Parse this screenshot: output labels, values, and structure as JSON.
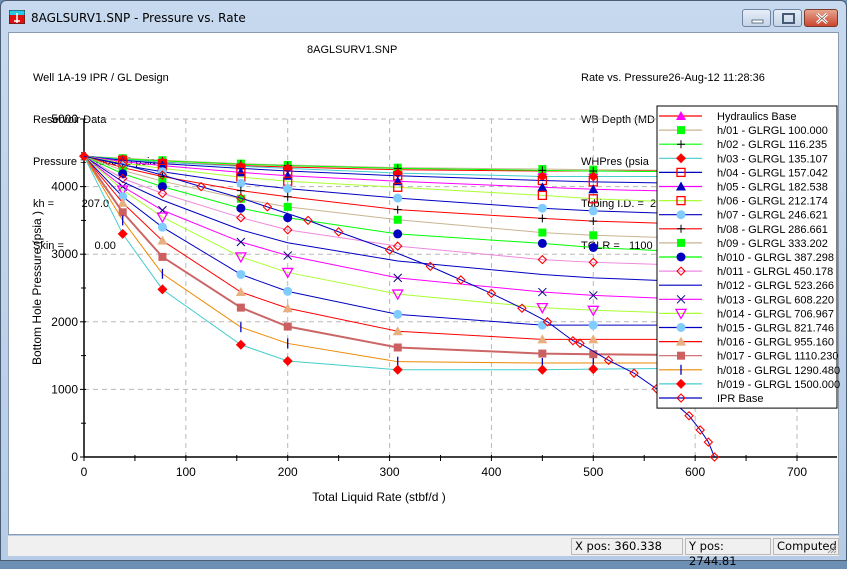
{
  "window": {
    "title": "8AGLSURV1.SNP - Pressure vs. Rate",
    "buttons": [
      "minimize",
      "maximize",
      "close"
    ]
  },
  "header": {
    "left": [
      "Well 1A-19 IPR / GL Design",
      "Reservoir Data",
      "Pressure =  4500.00 psia",
      "kh =         207.0",
      "Skin =          0.00"
    ],
    "center": "8AGLSURV1.SNP",
    "right": [
      "Rate vs. Pressure26-Aug-12 11:28:36",
      "WB Depth (MD ft)= 11000",
      "WHPres (psia   ) =  125.00",
      "Tubing I.D. =  2.441 (s1)",
      "TGLR =   1100"
    ]
  },
  "status": {
    "x_pos": "X pos: 360.338",
    "y_pos": "Y pos: 2744.81",
    "state": "Computed"
  },
  "chart_data": {
    "type": "line",
    "title": "",
    "xlabel": "Total Liquid Rate (stbf/d  )",
    "ylabel": "Bottom Hole Pressure (psia   )",
    "xlim": [
      0,
      700
    ],
    "ylim": [
      0,
      5000
    ],
    "xticks": [
      0,
      100,
      200,
      300,
      400,
      500,
      600,
      700
    ],
    "yticks": [
      0,
      1000,
      2000,
      3000,
      4000,
      5000
    ],
    "grid": true,
    "legend_position": "upper right",
    "x": [
      0,
      38,
      77,
      154,
      200,
      308,
      450,
      500
    ],
    "series": [
      {
        "name": "Hydraulics Base",
        "color": "#ff0000",
        "marker": "triangle",
        "marker_color": "#ff00ff",
        "values": [
          4450,
          4400,
          4360,
          4310,
          4290,
          4250,
          4230,
          4230
        ]
      },
      {
        "name": "h/01 - GLRGL 100.000",
        "color": "#c8b490",
        "marker": "square",
        "marker_color": "#00ff00",
        "values": [
          4450,
          4420,
          4390,
          4340,
          4320,
          4280,
          4260,
          4250
        ]
      },
      {
        "name": "h/02 - GLRGL 116.235",
        "color": "#00ff00",
        "marker": "plus",
        "marker_color": "#000000",
        "values": [
          4450,
          4410,
          4380,
          4330,
          4310,
          4270,
          4240,
          4230
        ]
      },
      {
        "name": "h/03 - GLRGL 135.107",
        "color": "#44cccc",
        "marker": "diamond",
        "marker_color": "#ff0000",
        "values": [
          4450,
          4400,
          4360,
          4300,
          4270,
          4200,
          4150,
          4150
        ]
      },
      {
        "name": "h/04 - GLRGL 157.042",
        "color": "#0000c0",
        "marker": "square-open",
        "marker_color": "#ff0000",
        "values": [
          4450,
          4390,
          4340,
          4270,
          4230,
          4160,
          4090,
          4070
        ]
      },
      {
        "name": "h/05 - GLRGL 182.538",
        "color": "#ff00ff",
        "marker": "triangle",
        "marker_color": "#0000c0",
        "values": [
          4450,
          4370,
          4310,
          4210,
          4160,
          4080,
          3990,
          3960
        ]
      },
      {
        "name": "h/06 - GLRGL 212.174",
        "color": "#aaff33",
        "marker": "square-open",
        "marker_color": "#ff0000",
        "values": [
          4450,
          4350,
          4270,
          4140,
          4080,
          3990,
          3870,
          3820
        ]
      },
      {
        "name": "h/07 - GLRGL 246.621",
        "color": "#0000c0",
        "marker": "circle",
        "marker_color": "#80ccff",
        "values": [
          4450,
          4320,
          4220,
          4050,
          3970,
          3830,
          3680,
          3640
        ]
      },
      {
        "name": "h/08 - GLRGL 286.661",
        "color": "#ff0000",
        "marker": "plus",
        "marker_color": "#000000",
        "values": [
          4450,
          4280,
          4150,
          3940,
          3850,
          3660,
          3530,
          3490
        ]
      },
      {
        "name": "h/09 - GLRGL 333.202",
        "color": "#c8b490",
        "marker": "square",
        "marker_color": "#00ff00",
        "values": [
          4450,
          4240,
          4080,
          3820,
          3700,
          3510,
          3320,
          3280
        ]
      },
      {
        "name": "h/010 - GLRGL 387.298",
        "color": "#00ff00",
        "marker": "circle",
        "marker_color": "#0000c0",
        "values": [
          4450,
          4190,
          4000,
          3680,
          3540,
          3300,
          3160,
          3100
        ]
      },
      {
        "name": "h/011 - GLRGL 450.178",
        "color": "#ee88dd",
        "marker": "diamond-open",
        "marker_color": "#ff0000",
        "values": [
          4450,
          4120,
          3900,
          3540,
          3360,
          3120,
          2920,
          2880
        ]
      },
      {
        "name": "h/012 - GLRGL 523.266",
        "color": "#0000c0",
        "marker": "none",
        "marker_color": "#0000c0",
        "values": [
          4450,
          4070,
          3800,
          3360,
          3170,
          2900,
          2700,
          2650
        ]
      },
      {
        "name": "h/013 - GLRGL 608.220",
        "color": "#ff00ff",
        "marker": "x",
        "marker_color": "#000080",
        "values": [
          4450,
          4000,
          3650,
          3180,
          2980,
          2650,
          2440,
          2390
        ]
      },
      {
        "name": "h/014 - GLRGL 706.967",
        "color": "#aaff33",
        "marker": "triangle-down-open",
        "marker_color": "#ff00ff",
        "values": [
          4450,
          3950,
          3550,
          2960,
          2730,
          2410,
          2210,
          2170
        ]
      },
      {
        "name": "h/015 - GLRGL 821.746",
        "color": "#0000c0",
        "marker": "circle",
        "marker_color": "#80ccff",
        "values": [
          4450,
          3850,
          3400,
          2700,
          2450,
          2110,
          1950,
          1950
        ]
      },
      {
        "name": "h/016 - GLRGL 955.160",
        "color": "#ff0000",
        "marker": "triangle",
        "marker_color": "#e8b080",
        "values": [
          4450,
          3760,
          3200,
          2440,
          2200,
          1860,
          1740,
          1740
        ]
      },
      {
        "name": "h/017 - GLRGL 1110.230",
        "color": "#cc6666",
        "marker": "square",
        "marker_color": "#cc6060",
        "values": [
          4450,
          3620,
          2960,
          2210,
          1930,
          1620,
          1530,
          1520
        ]
      },
      {
        "name": "h/018 - GLRGL 1290.480",
        "color": "#ee8800",
        "marker": "vbar",
        "marker_color": "#0000c0",
        "values": [
          4450,
          3500,
          2710,
          1920,
          1680,
          1410,
          1390,
          1390
        ]
      },
      {
        "name": "h/019 - GLRGL 1500.000",
        "color": "#44cccc",
        "marker": "diamond",
        "marker_color": "#ff0000",
        "values": [
          4450,
          3300,
          2480,
          1660,
          1420,
          1290,
          1290,
          1300
        ]
      }
    ],
    "ipr_base": {
      "name": "IPR Base",
      "color": "#0000c0",
      "marker": "diamond-open",
      "marker_color": "#ff0000",
      "x": [
        0,
        38,
        77,
        115,
        154,
        180,
        220,
        250,
        300,
        340,
        370,
        400,
        430,
        455,
        480,
        487,
        515,
        540,
        562,
        578,
        594,
        605,
        613,
        619
      ],
      "y": [
        4450,
        4330,
        4170,
        4000,
        3830,
        3700,
        3500,
        3330,
        3060,
        2820,
        2620,
        2420,
        2200,
        2000,
        1720,
        1680,
        1430,
        1240,
        1010,
        820,
        610,
        400,
        220,
        0
      ]
    }
  }
}
